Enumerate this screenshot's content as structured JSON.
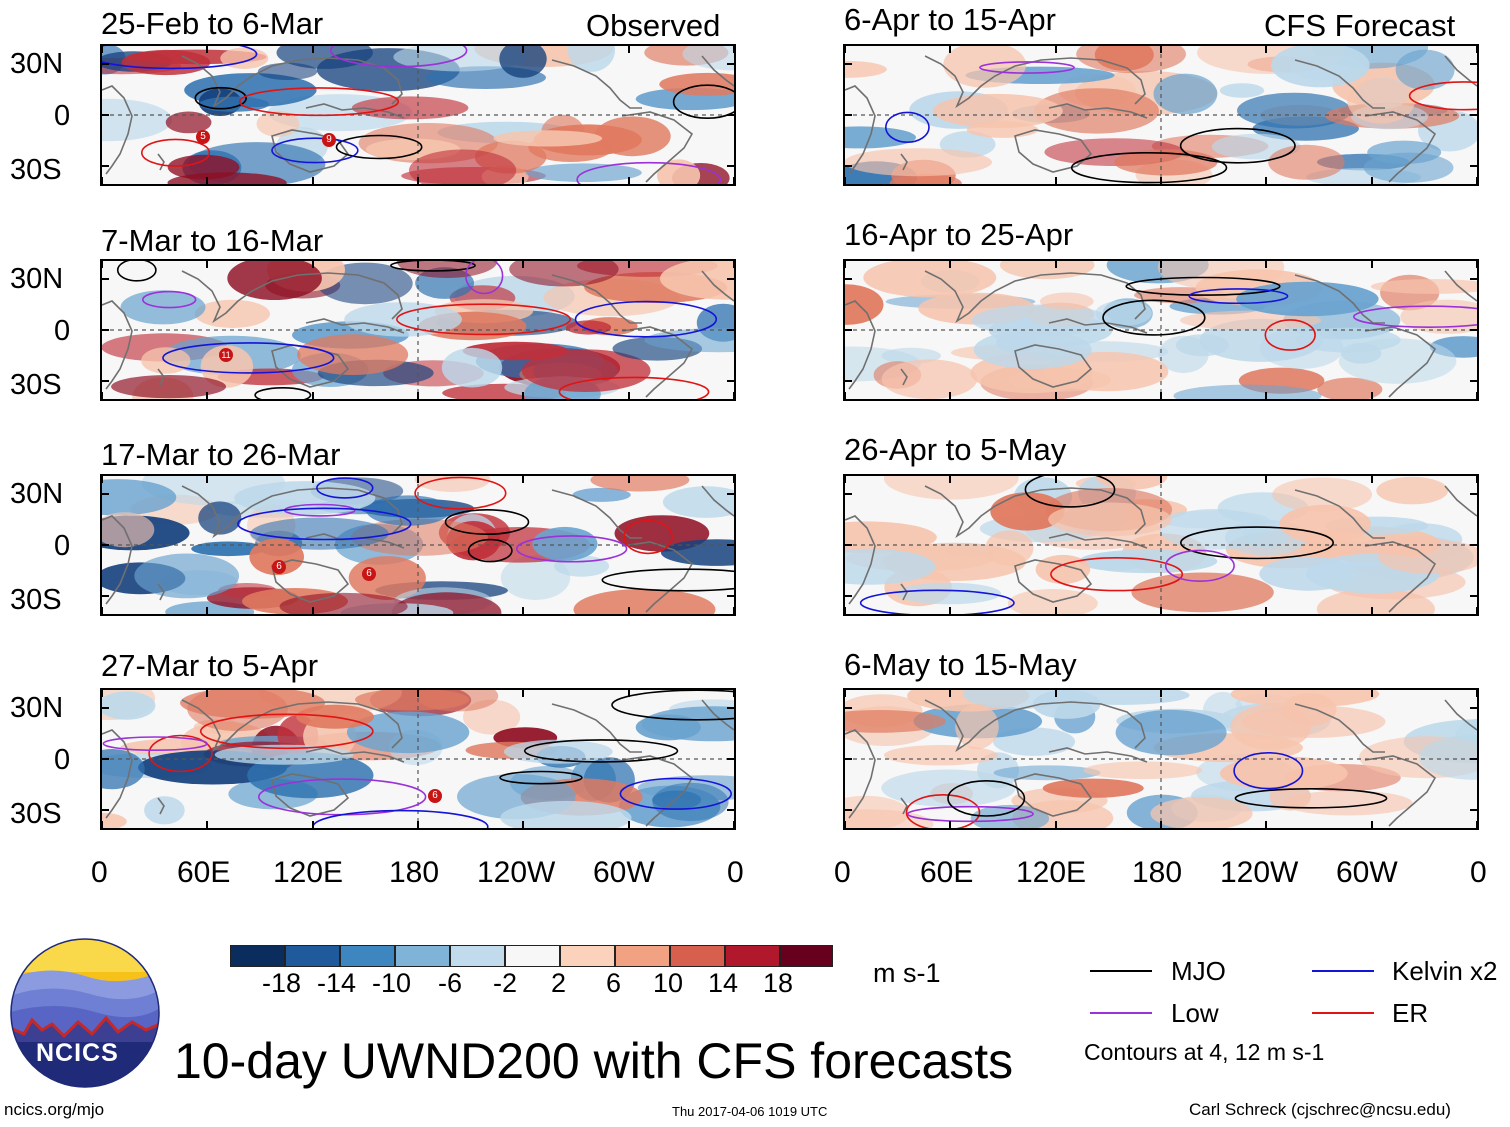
{
  "columns": {
    "left_label": "Observed",
    "right_label": "CFS Forecast"
  },
  "lat_labels": [
    "30N",
    "0",
    "30S"
  ],
  "lon_labels": [
    "0",
    "60E",
    "120E",
    "180",
    "120W",
    "60W",
    "0"
  ],
  "panels": [
    {
      "title": "25-Feb to 6-Mar"
    },
    {
      "title": "6-Apr to 15-Apr"
    },
    {
      "title": "7-Mar to 16-Mar"
    },
    {
      "title": "16-Apr to 25-Apr"
    },
    {
      "title": "17-Mar to 26-Mar"
    },
    {
      "title": "26-Apr to 5-May"
    },
    {
      "title": "27-Mar to 5-Apr"
    },
    {
      "title": "6-May to 15-May"
    }
  ],
  "cyclone_markers": [
    "5",
    "9",
    "11",
    "6",
    "6",
    "6"
  ],
  "colorbar": {
    "colors": [
      "#0b2d5e",
      "#1f5a9c",
      "#3d86bf",
      "#7fb3d8",
      "#c2dbec",
      "#f7f7f7",
      "#fbd3bd",
      "#f0a283",
      "#d6604d",
      "#b2182b",
      "#67001f"
    ],
    "labels": [
      "-18",
      "-14",
      "-10",
      "-6",
      "-2",
      "2",
      "6",
      "10",
      "14",
      "18"
    ],
    "units": "m s-1"
  },
  "legend": {
    "items": [
      {
        "label": "MJO",
        "color": "#000000"
      },
      {
        "label": "Kelvin x2",
        "color": "#1414d8"
      },
      {
        "label": "Low",
        "color": "#9a32d8"
      },
      {
        "label": "ER",
        "color": "#e01414"
      }
    ],
    "contour_note": "Contours at 4, 12 m s-1"
  },
  "logo": {
    "text": "NCICS"
  },
  "main_title": "10-day UWND200 with CFS forecasts",
  "footer": {
    "url": "ncics.org/mjo",
    "timestamp": "Thu 2017-04-06 1019 UTC",
    "credit": "Carl Schreck (cjschrec@ncsu.edu)"
  }
}
